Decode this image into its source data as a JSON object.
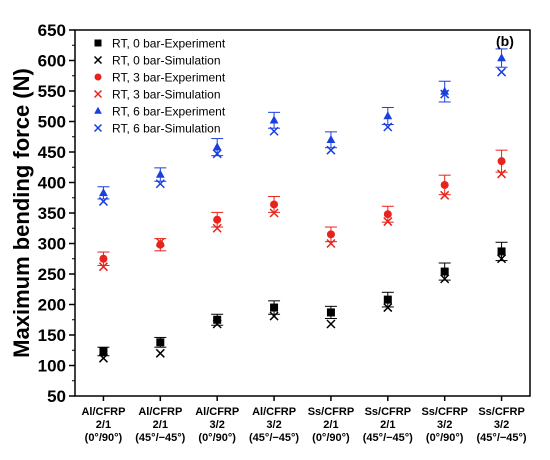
{
  "chart_data": {
    "type": "scatter",
    "panel_label": "(b)",
    "ylabel": "Maximum bending force (N)",
    "xlabel": "",
    "ylim": [
      50,
      650
    ],
    "yticks": [
      50,
      100,
      150,
      200,
      250,
      300,
      350,
      400,
      450,
      500,
      550,
      600,
      650
    ],
    "grid": false,
    "legend_position": "top-left",
    "categories": [
      [
        "Al/CFRP",
        "2/1",
        "(0°/90°)"
      ],
      [
        "Al/CFRP",
        "2/1",
        "(45°/−45°)"
      ],
      [
        "Al/CFRP",
        "3/2",
        "(0°/90°)"
      ],
      [
        "Al/CFRP",
        "3/2",
        "(45°/−45°)"
      ],
      [
        "Ss/CFRP",
        "2/1",
        "(0°/90°)"
      ],
      [
        "Ss/CFRP",
        "2/1",
        "(45°/−45°)"
      ],
      [
        "Ss/CFRP",
        "3/2",
        "(0°/90°)"
      ],
      [
        "Ss/CFRP",
        "3/2",
        "(45°/−45°)"
      ]
    ],
    "series": [
      {
        "name": "RT, 0 bar-Experiment",
        "marker": "square",
        "color": "#000000",
        "values": [
          123,
          138,
          175,
          195,
          187,
          208,
          254,
          287
        ],
        "errors": [
          7,
          8,
          9,
          11,
          10,
          12,
          14,
          15
        ]
      },
      {
        "name": "RT, 0 bar-Simulation",
        "marker": "x",
        "color": "#000000",
        "values": [
          112,
          120,
          168,
          181,
          168,
          195,
          242,
          275
        ]
      },
      {
        "name": "RT, 3 bar-Experiment",
        "marker": "circle",
        "color": "#e8231c",
        "values": [
          275,
          298,
          339,
          364,
          315,
          348,
          396,
          435
        ],
        "errors": [
          11,
          10,
          12,
          13,
          12,
          13,
          16,
          18
        ]
      },
      {
        "name": "RT, 3 bar-Simulation",
        "marker": "x",
        "color": "#e8231c",
        "values": [
          262,
          302,
          325,
          350,
          300,
          336,
          379,
          414
        ]
      },
      {
        "name": "RT, 6 bar-Experiment",
        "marker": "triangle",
        "color": "#1a3fe0",
        "values": [
          383,
          413,
          458,
          502,
          470,
          509,
          549,
          604
        ],
        "errors": [
          10,
          11,
          14,
          13,
          13,
          14,
          17,
          15
        ]
      },
      {
        "name": "RT, 6 bar-Simulation",
        "marker": "x",
        "color": "#1a3fe0",
        "values": [
          369,
          398,
          447,
          484,
          453,
          491,
          545,
          581
        ]
      }
    ]
  }
}
